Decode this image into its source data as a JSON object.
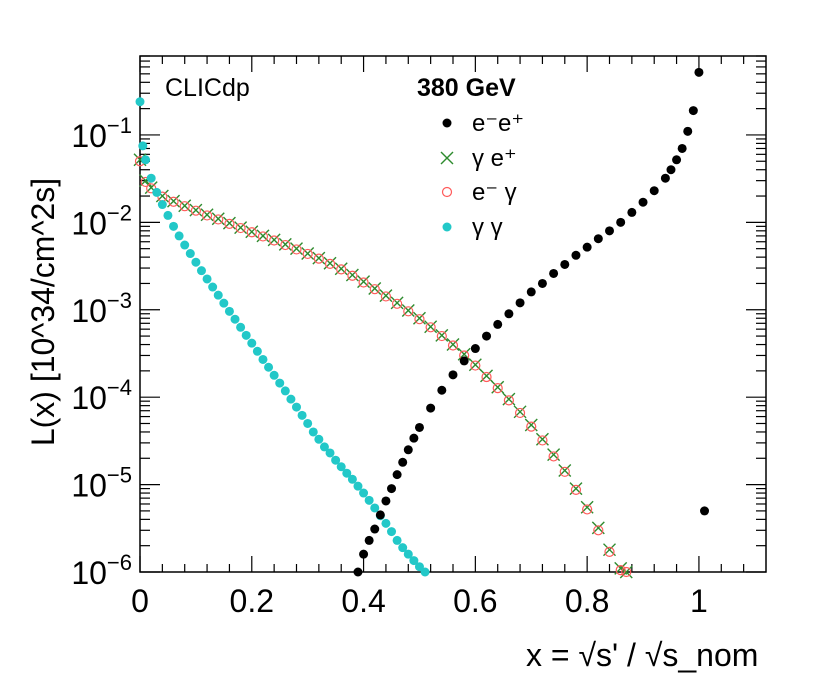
{
  "chart_data": {
    "type": "scatter",
    "title": "",
    "experiment_label": "CLICdp",
    "energy_label": "380 GeV",
    "xlabel": "x = √s' / √s_nom",
    "ylabel": "L(x) [10^34/cm^2s]",
    "xlim": [
      0,
      1.12
    ],
    "ylim": [
      1e-06,
      0.8
    ],
    "yscale": "log",
    "x_ticks": [
      {
        "value": 0,
        "label": "0"
      },
      {
        "value": 0.2,
        "label": "0.2"
      },
      {
        "value": 0.4,
        "label": "0.4"
      },
      {
        "value": 0.6,
        "label": "0.6"
      },
      {
        "value": 0.8,
        "label": "0.8"
      },
      {
        "value": 1.0,
        "label": "1"
      }
    ],
    "y_ticks": [
      {
        "value": 1e-06,
        "base": "10",
        "exp": "−6"
      },
      {
        "value": 1e-05,
        "base": "10",
        "exp": "−5"
      },
      {
        "value": 0.0001,
        "base": "10",
        "exp": "−4"
      },
      {
        "value": 0.001,
        "base": "10",
        "exp": "−3"
      },
      {
        "value": 0.01,
        "base": "10",
        "exp": "−2"
      },
      {
        "value": 0.1,
        "base": "10",
        "exp": "−1"
      }
    ],
    "legend": [
      {
        "label": "e⁻e⁺",
        "marker": "filled-circle",
        "color": "#000000"
      },
      {
        "label": "γ e⁺",
        "marker": "cross",
        "color": "#2e8b2e"
      },
      {
        "label": "e⁻ γ",
        "marker": "open-circle",
        "color": "#ff5a5a"
      },
      {
        "label": "γ  γ",
        "marker": "filled-circle",
        "color": "#22c8c8"
      }
    ],
    "series": [
      {
        "name": "e-e+",
        "marker": "filled-circle",
        "color": "#000000",
        "x": [
          0.39,
          0.4,
          0.41,
          0.42,
          0.43,
          0.44,
          0.45,
          0.46,
          0.47,
          0.48,
          0.49,
          0.5,
          0.52,
          0.54,
          0.56,
          0.58,
          0.6,
          0.62,
          0.64,
          0.66,
          0.68,
          0.7,
          0.72,
          0.74,
          0.76,
          0.78,
          0.8,
          0.82,
          0.84,
          0.86,
          0.88,
          0.9,
          0.92,
          0.94,
          0.95,
          0.96,
          0.97,
          0.98,
          0.99,
          1.0,
          1.01
        ],
        "y": [
          1e-06,
          1.6e-06,
          2.3e-06,
          3.1e-06,
          4.5e-06,
          6.5e-06,
          9e-06,
          1.3e-05,
          1.8e-05,
          2.5e-05,
          3.4e-05,
          4.5e-05,
          7.5e-05,
          0.00012,
          0.00018,
          0.00026,
          0.00036,
          0.0005,
          0.00068,
          0.0009,
          0.0012,
          0.0016,
          0.002,
          0.0026,
          0.0033,
          0.0042,
          0.0052,
          0.0065,
          0.008,
          0.01,
          0.013,
          0.017,
          0.023,
          0.032,
          0.04,
          0.052,
          0.07,
          0.11,
          0.19,
          0.52,
          5e-06
        ]
      },
      {
        "name": "gamma e+",
        "marker": "cross",
        "color": "#2e8b2e",
        "x": [
          0.0,
          0.01,
          0.02,
          0.04,
          0.06,
          0.08,
          0.1,
          0.12,
          0.14,
          0.16,
          0.18,
          0.2,
          0.22,
          0.24,
          0.26,
          0.28,
          0.3,
          0.32,
          0.34,
          0.36,
          0.38,
          0.4,
          0.42,
          0.44,
          0.46,
          0.48,
          0.5,
          0.52,
          0.54,
          0.56,
          0.58,
          0.6,
          0.62,
          0.64,
          0.66,
          0.68,
          0.7,
          0.72,
          0.74,
          0.76,
          0.78,
          0.8,
          0.82,
          0.84,
          0.86,
          0.87
        ],
        "y": [
          0.052,
          0.03,
          0.025,
          0.02,
          0.0175,
          0.0155,
          0.0138,
          0.0122,
          0.011,
          0.0098,
          0.0087,
          0.0078,
          0.007,
          0.0063,
          0.0056,
          0.005,
          0.0044,
          0.0039,
          0.0034,
          0.00295,
          0.0025,
          0.0021,
          0.00175,
          0.00145,
          0.0012,
          0.00098,
          0.0008,
          0.00064,
          0.00051,
          0.0004,
          0.00031,
          0.000235,
          0.000175,
          0.00013,
          9.5e-05,
          6.8e-05,
          4.8e-05,
          3.3e-05,
          2.2e-05,
          1.45e-05,
          9e-06,
          5.5e-06,
          3.2e-06,
          1.8e-06,
          1.1e-06,
          1e-06
        ]
      },
      {
        "name": "e- gamma",
        "marker": "open-circle",
        "color": "#ff5a5a",
        "x": [
          0.0,
          0.01,
          0.02,
          0.04,
          0.06,
          0.08,
          0.1,
          0.12,
          0.14,
          0.16,
          0.18,
          0.2,
          0.22,
          0.24,
          0.26,
          0.28,
          0.3,
          0.32,
          0.34,
          0.36,
          0.38,
          0.4,
          0.42,
          0.44,
          0.46,
          0.48,
          0.5,
          0.52,
          0.54,
          0.56,
          0.58,
          0.6,
          0.62,
          0.64,
          0.66,
          0.68,
          0.7,
          0.72,
          0.74,
          0.76,
          0.78,
          0.8,
          0.82,
          0.84,
          0.86,
          0.87
        ],
        "y": [
          0.05,
          0.029,
          0.0245,
          0.0197,
          0.0172,
          0.0153,
          0.0136,
          0.012,
          0.0108,
          0.0096,
          0.0086,
          0.0077,
          0.0069,
          0.0062,
          0.0055,
          0.0049,
          0.00435,
          0.00385,
          0.00335,
          0.0029,
          0.00245,
          0.00205,
          0.00172,
          0.00142,
          0.00117,
          0.00096,
          0.00078,
          0.00063,
          0.0005,
          0.00039,
          0.0003,
          0.00023,
          0.00017,
          0.000127,
          9.2e-05,
          6.6e-05,
          4.6e-05,
          3.2e-05,
          2.1e-05,
          1.4e-05,
          8.7e-06,
          5.2e-06,
          3e-06,
          1.7e-06,
          1.05e-06,
          1e-06
        ]
      },
      {
        "name": "gamma gamma",
        "marker": "filled-circle",
        "color": "#22c8c8",
        "x": [
          0.0,
          0.005,
          0.01,
          0.02,
          0.03,
          0.04,
          0.05,
          0.06,
          0.07,
          0.08,
          0.09,
          0.1,
          0.11,
          0.12,
          0.13,
          0.14,
          0.15,
          0.16,
          0.17,
          0.18,
          0.19,
          0.2,
          0.21,
          0.22,
          0.23,
          0.24,
          0.25,
          0.26,
          0.27,
          0.28,
          0.29,
          0.3,
          0.31,
          0.32,
          0.33,
          0.34,
          0.35,
          0.36,
          0.37,
          0.38,
          0.39,
          0.4,
          0.41,
          0.42,
          0.43,
          0.44,
          0.45,
          0.46,
          0.47,
          0.48,
          0.49,
          0.5,
          0.51
        ],
        "y": [
          0.24,
          0.075,
          0.052,
          0.032,
          0.022,
          0.016,
          0.012,
          0.009,
          0.007,
          0.0055,
          0.0044,
          0.0035,
          0.0028,
          0.00225,
          0.00182,
          0.00147,
          0.00119,
          0.00096,
          0.00078,
          0.00063,
          0.00051,
          0.000415,
          0.000335,
          0.00027,
          0.00022,
          0.000178,
          0.000145,
          0.000118,
          9.5e-05,
          7.7e-05,
          6.2e-05,
          5e-05,
          4e-05,
          3.3e-05,
          2.7e-05,
          2.3e-05,
          1.9e-05,
          1.6e-05,
          1.35e-05,
          1.15e-05,
          9.6e-06,
          8e-06,
          6.6e-06,
          5.4e-06,
          4.4e-06,
          3.6e-06,
          2.9e-06,
          2.3e-06,
          1.9e-06,
          1.6e-06,
          1.35e-06,
          1.15e-06,
          1e-06
        ]
      }
    ]
  }
}
